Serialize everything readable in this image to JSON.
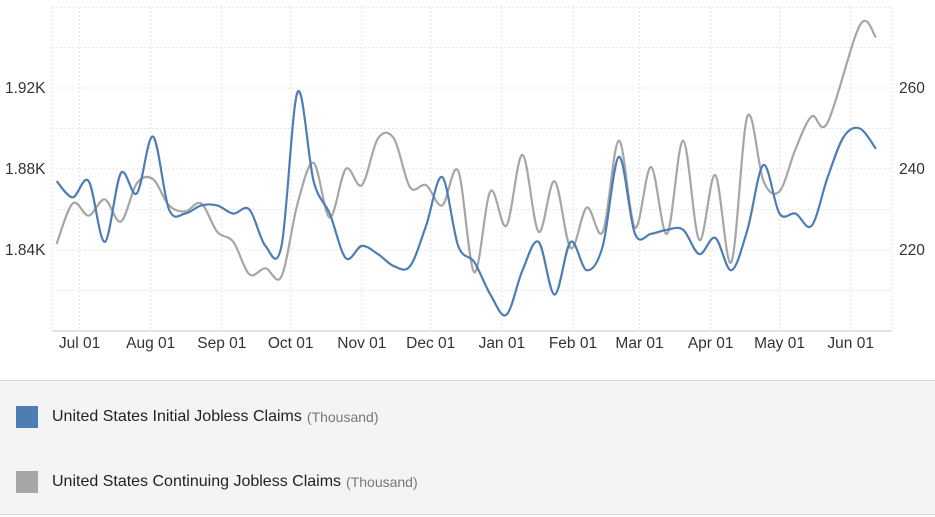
{
  "colors": {
    "initial": "#4e7db4",
    "continuing": "#a6a6a6"
  },
  "legend": [
    {
      "name": "United States Initial Jobless Claims",
      "unit": "(Thousand)"
    },
    {
      "name": "United States Continuing Jobless Claims",
      "unit": "(Thousand)"
    }
  ],
  "chart_data": {
    "type": "line",
    "grid": true,
    "legend_position": "bottom",
    "x_ticks": [
      "Jul 01",
      "Aug 01",
      "Sep 01",
      "Oct 01",
      "Nov 01",
      "Dec 01",
      "Jan 01",
      "Feb 01",
      "Mar 01",
      "Apr 01",
      "May 01",
      "Jun 01"
    ],
    "left_axis": {
      "ticks": [
        "1.84K",
        "1.88K",
        "1.92K"
      ],
      "tick_values": [
        1840,
        1880,
        1920
      ],
      "range": [
        1800,
        1960
      ]
    },
    "right_axis": {
      "ticks": [
        "220",
        "240",
        "260"
      ],
      "tick_values": [
        220,
        240,
        260
      ],
      "range": [
        200,
        280
      ]
    },
    "series": [
      {
        "name": "United States Initial Jobless Claims",
        "axis": "right",
        "points": [
          [
            "2019-06-21",
            237
          ],
          [
            "2019-06-28",
            233
          ],
          [
            "2019-07-05",
            237
          ],
          [
            "2019-07-12",
            222
          ],
          [
            "2019-07-19",
            239
          ],
          [
            "2019-07-26",
            234
          ],
          [
            "2019-08-02",
            248
          ],
          [
            "2019-08-09",
            230
          ],
          [
            "2019-08-16",
            229
          ],
          [
            "2019-08-23",
            231
          ],
          [
            "2019-08-30",
            231
          ],
          [
            "2019-09-06",
            229
          ],
          [
            "2019-09-13",
            230
          ],
          [
            "2019-09-20",
            221
          ],
          [
            "2019-09-27",
            221
          ],
          [
            "2019-10-04",
            259
          ],
          [
            "2019-10-11",
            237
          ],
          [
            "2019-10-18",
            229
          ],
          [
            "2019-10-25",
            218
          ],
          [
            "2019-11-01",
            221
          ],
          [
            "2019-11-08",
            219
          ],
          [
            "2019-11-15",
            216
          ],
          [
            "2019-11-22",
            216
          ],
          [
            "2019-11-29",
            226
          ],
          [
            "2019-12-06",
            238
          ],
          [
            "2019-12-13",
            221
          ],
          [
            "2019-12-20",
            217
          ],
          [
            "2019-12-27",
            209
          ],
          [
            "2020-01-03",
            204
          ],
          [
            "2020-01-10",
            215
          ],
          [
            "2020-01-17",
            222
          ],
          [
            "2020-01-24",
            209
          ],
          [
            "2020-01-31",
            222
          ],
          [
            "2020-02-07",
            215
          ],
          [
            "2020-02-14",
            221
          ],
          [
            "2020-02-21",
            243
          ],
          [
            "2020-02-28",
            224
          ],
          [
            "2020-03-06",
            224
          ],
          [
            "2020-03-13",
            225
          ],
          [
            "2020-03-20",
            225
          ],
          [
            "2020-03-27",
            219
          ],
          [
            "2020-04-03",
            223
          ],
          [
            "2020-04-10",
            215
          ],
          [
            "2020-04-17",
            225
          ],
          [
            "2020-04-24",
            241
          ],
          [
            "2020-05-01",
            229
          ],
          [
            "2020-05-08",
            229
          ],
          [
            "2020-05-15",
            226
          ],
          [
            "2020-05-22",
            238
          ],
          [
            "2020-05-29",
            248
          ],
          [
            "2020-06-05",
            250
          ],
          [
            "2020-06-12",
            245
          ]
        ]
      },
      {
        "name": "United States Continuing Jobless Claims",
        "axis": "left",
        "points": [
          [
            "2019-06-21",
            1843
          ],
          [
            "2019-06-28",
            1863
          ],
          [
            "2019-07-05",
            1857
          ],
          [
            "2019-07-12",
            1865
          ],
          [
            "2019-07-19",
            1854
          ],
          [
            "2019-07-26",
            1873
          ],
          [
            "2019-08-02",
            1875
          ],
          [
            "2019-08-09",
            1862
          ],
          [
            "2019-08-16",
            1859
          ],
          [
            "2019-08-23",
            1863
          ],
          [
            "2019-08-30",
            1849
          ],
          [
            "2019-09-06",
            1844
          ],
          [
            "2019-09-13",
            1828
          ],
          [
            "2019-09-20",
            1831
          ],
          [
            "2019-09-27",
            1827
          ],
          [
            "2019-10-04",
            1863
          ],
          [
            "2019-10-11",
            1883
          ],
          [
            "2019-10-18",
            1856
          ],
          [
            "2019-10-25",
            1880
          ],
          [
            "2019-11-01",
            1872
          ],
          [
            "2019-11-08",
            1895
          ],
          [
            "2019-11-15",
            1895
          ],
          [
            "2019-11-22",
            1871
          ],
          [
            "2019-11-29",
            1872
          ],
          [
            "2019-12-06",
            1862
          ],
          [
            "2019-12-13",
            1879
          ],
          [
            "2019-12-20",
            1829
          ],
          [
            "2019-12-27",
            1869
          ],
          [
            "2020-01-03",
            1852
          ],
          [
            "2020-01-10",
            1887
          ],
          [
            "2020-01-17",
            1849
          ],
          [
            "2020-01-24",
            1874
          ],
          [
            "2020-01-31",
            1841
          ],
          [
            "2020-02-07",
            1861
          ],
          [
            "2020-02-14",
            1849
          ],
          [
            "2020-02-21",
            1894
          ],
          [
            "2020-02-28",
            1851
          ],
          [
            "2020-03-06",
            1881
          ],
          [
            "2020-03-13",
            1848
          ],
          [
            "2020-03-20",
            1894
          ],
          [
            "2020-03-27",
            1845
          ],
          [
            "2020-04-03",
            1877
          ],
          [
            "2020-04-10",
            1834
          ],
          [
            "2020-04-17",
            1906
          ],
          [
            "2020-04-24",
            1874
          ],
          [
            "2020-05-01",
            1869
          ],
          [
            "2020-05-08",
            1890
          ],
          [
            "2020-05-15",
            1906
          ],
          [
            "2020-05-22",
            1903
          ],
          [
            "2020-06-05",
            1951
          ],
          [
            "2020-06-12",
            1945
          ]
        ]
      }
    ]
  }
}
